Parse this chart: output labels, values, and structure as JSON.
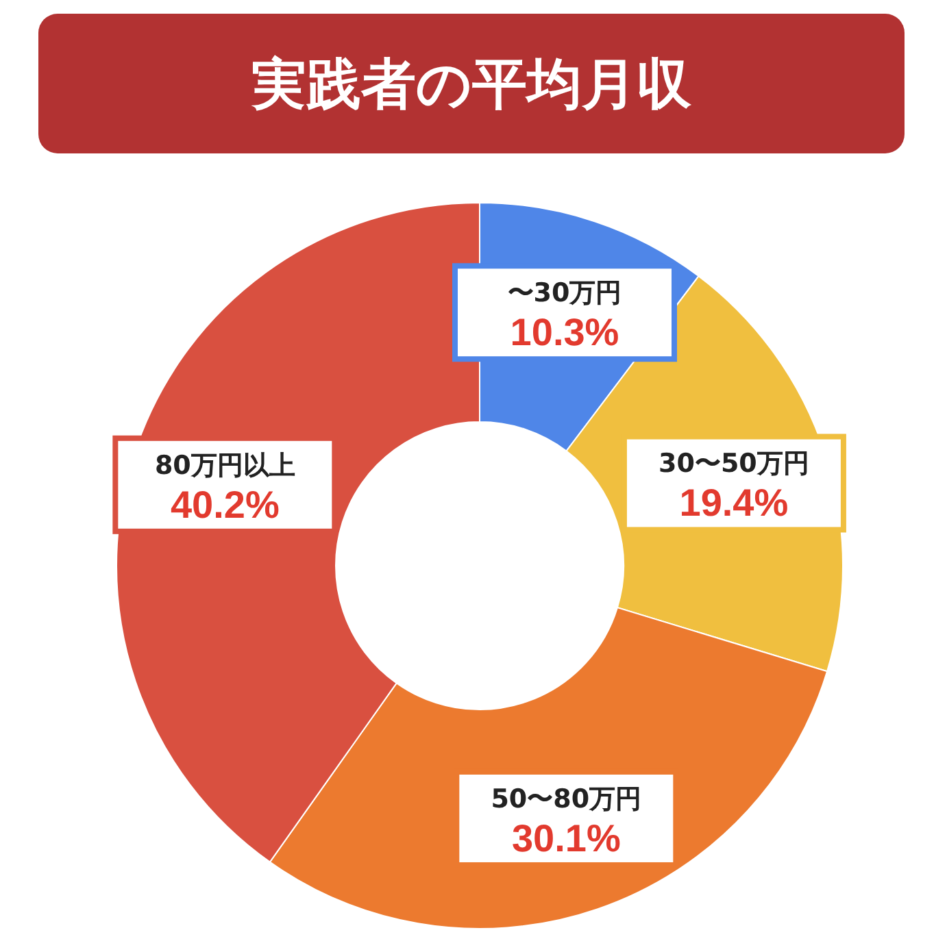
{
  "chart_data": {
    "type": "donut",
    "title": "実践者の平均月収",
    "categories": [
      "〜30万円",
      "30〜50万円",
      "50〜80万円",
      "80万円以上"
    ],
    "values": [
      10.3,
      19.4,
      30.1,
      40.2
    ],
    "colors": [
      "#4f86e8",
      "#f0bf3f",
      "#ec7a2f",
      "#d95040"
    ],
    "value_labels": [
      "10.3%",
      "19.4%",
      "30.1%",
      "40.2%"
    ]
  }
}
